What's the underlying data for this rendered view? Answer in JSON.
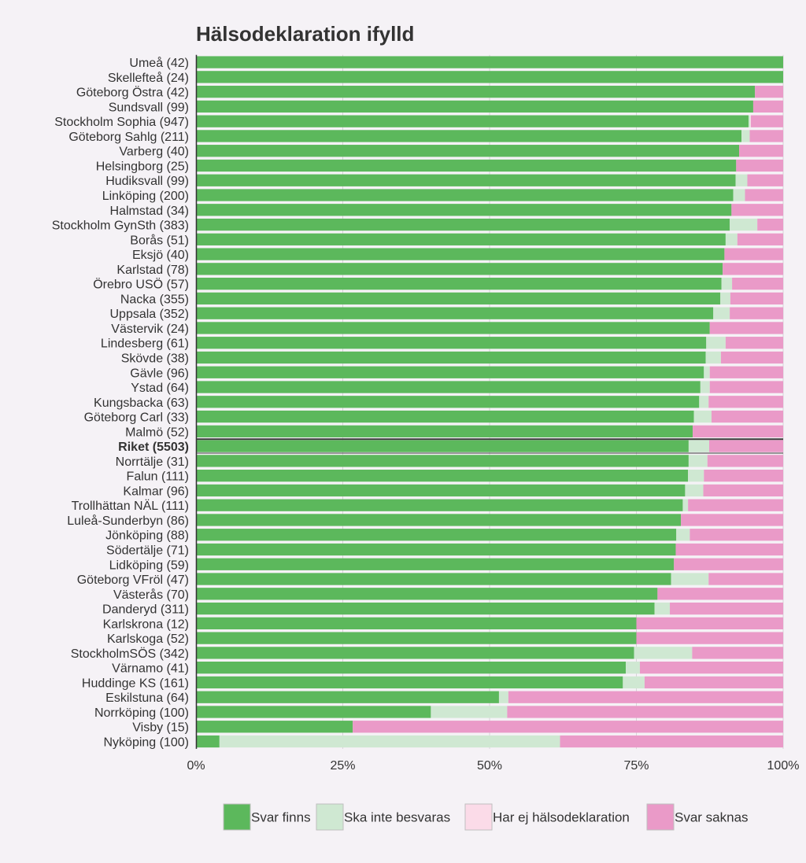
{
  "chart_data": {
    "type": "bar",
    "orientation": "horizontal",
    "stacked": true,
    "normalized": true,
    "title": "Hälsodeklaration ifylld",
    "xlabel": "",
    "ylabel": "",
    "xlim": [
      0,
      100
    ],
    "x_ticks": [
      "0%",
      "25%",
      "50%",
      "75%",
      "100%"
    ],
    "grid": true,
    "legend_position": "bottom",
    "highlight_category": "Riket (5503)",
    "colors": {
      "Svar finns": "#5cb85c",
      "Ska inte besvaras": "#cfe8d2",
      "Har ej hälsodeklaration": "#fbdbe8",
      "Svar saknas": "#ea9ac8"
    },
    "categories": [
      "Umeå (42)",
      "Skellefteå (24)",
      "Göteborg Östra (42)",
      "Sundsvall (99)",
      "Stockholm Sophia (947)",
      "Göteborg Sahlg (211)",
      "Varberg (40)",
      "Helsingborg (25)",
      "Hudiksvall (99)",
      "Linköping (200)",
      "Halmstad (34)",
      "Stockholm GynSth (383)",
      "Borås (51)",
      "Eksjö (40)",
      "Karlstad (78)",
      "Örebro USÖ (57)",
      "Nacka (355)",
      "Uppsala (352)",
      "Västervik (24)",
      "Lindesberg (61)",
      "Skövde (38)",
      "Gävle (96)",
      "Ystad (64)",
      "Kungsbacka (63)",
      "Göteborg Carl (33)",
      "Malmö (52)",
      "Riket (5503)",
      "Norrtälje (31)",
      "Falun (111)",
      "Kalmar (96)",
      "Trollhättan NÄL (111)",
      "Luleå-Sunderbyn (86)",
      "Jönköping (88)",
      "Södertälje (71)",
      "Lidköping (59)",
      "Göteborg VFröl (47)",
      "Västerås (70)",
      "Danderyd (311)",
      "Karlskrona (12)",
      "Karlskoga (52)",
      "StockholmSÖS (342)",
      "Värnamo (41)",
      "Huddinge KS (161)",
      "Eskilstuna (64)",
      "Norrköping (100)",
      "Visby (15)",
      "Nyköping (100)"
    ],
    "series": [
      {
        "name": "Svar finns",
        "values": [
          100,
          100,
          95.2,
          94.9,
          94.1,
          92.9,
          92.5,
          92,
          91.9,
          91.5,
          91.2,
          90.9,
          90.2,
          90,
          89.7,
          89.5,
          89.3,
          88.1,
          87.5,
          86.9,
          86.8,
          86.5,
          85.9,
          85.7,
          84.8,
          84.6,
          83.9,
          83.9,
          83.8,
          83.3,
          82.9,
          82.6,
          81.8,
          81.7,
          81.4,
          80.9,
          78.6,
          78.1,
          75,
          75,
          74.6,
          73.2,
          72.7,
          51.6,
          40,
          26.7,
          4
        ]
      },
      {
        "name": "Ska inte besvaras",
        "values": [
          0,
          0,
          0,
          0,
          0.3,
          1.4,
          0,
          0,
          2,
          2,
          0,
          4.7,
          2,
          0,
          0,
          1.8,
          1.7,
          2.8,
          0,
          3.3,
          2.6,
          1,
          1.6,
          1.6,
          3,
          0,
          3.5,
          3.2,
          2.7,
          3.1,
          0.9,
          0,
          2.3,
          0,
          0,
          6.4,
          0,
          2.6,
          0,
          0,
          9.9,
          2.4,
          3.7,
          1.6,
          13,
          0,
          58
        ]
      },
      {
        "name": "Har ej hälsodeklaration",
        "values": [
          0,
          0,
          0,
          0,
          0.1,
          0,
          0,
          0,
          0,
          0,
          0,
          0,
          0,
          0,
          0,
          0,
          0,
          0,
          0,
          0,
          0,
          0,
          0,
          0,
          0,
          0,
          0,
          0,
          0,
          0,
          0,
          0,
          0,
          0,
          0,
          0,
          0,
          0,
          0,
          0,
          0,
          0,
          0,
          0,
          0,
          0,
          0
        ]
      },
      {
        "name": "Svar saknas",
        "values": [
          0,
          0,
          4.8,
          5.1,
          5.5,
          5.7,
          7.5,
          8,
          6.1,
          6.5,
          8.8,
          4.4,
          7.8,
          10,
          10.3,
          8.7,
          9,
          9.1,
          12.5,
          9.8,
          10.6,
          12.5,
          12.5,
          12.7,
          12.2,
          15.4,
          12.6,
          12.9,
          13.5,
          13.6,
          16.2,
          17.4,
          15.9,
          18.3,
          18.6,
          12.7,
          21.4,
          19.3,
          25,
          25,
          15.5,
          24.4,
          23.6,
          46.8,
          47,
          73.3,
          38
        ]
      }
    ]
  }
}
